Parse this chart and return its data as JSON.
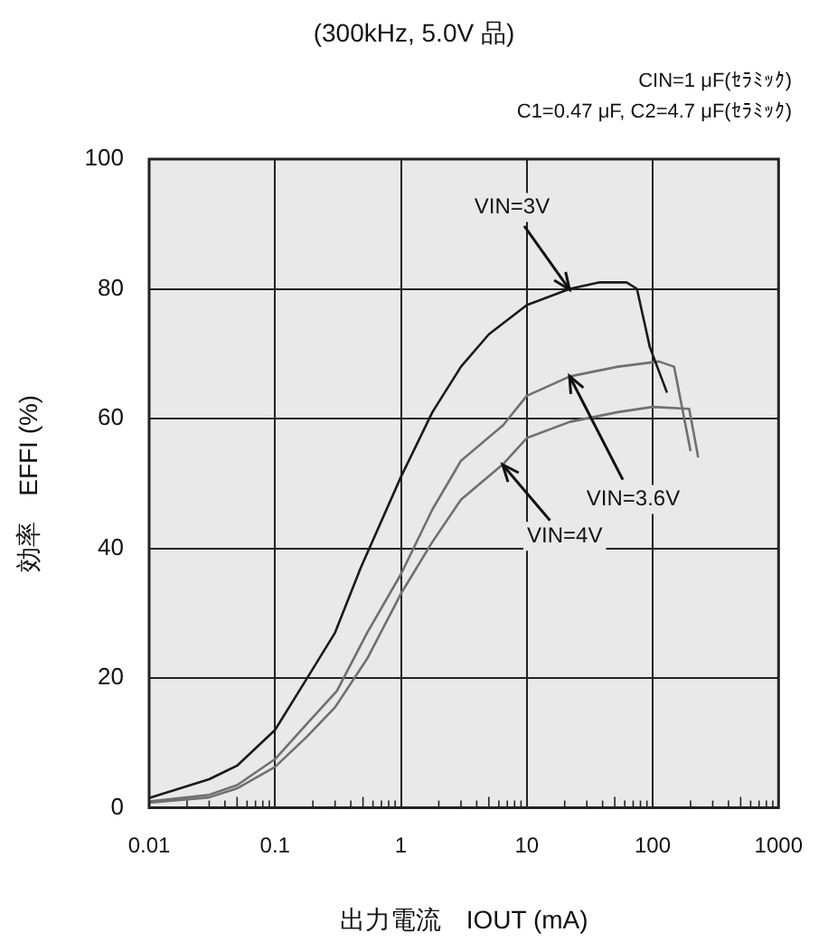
{
  "chart_data": {
    "type": "line",
    "title": "(300kHz, 5.0V 品)",
    "annotations": [
      "CIN=1 μF(ｾﾗﾐｯｸ)",
      "C1=0.47 μF, C2=4.7 μF(ｾﾗﾐｯｸ)"
    ],
    "xlabel": "出力電流　IOUT (mA)",
    "ylabel": "効率　EFFI (%)",
    "log": "x",
    "xlim": [
      0.01,
      1000
    ],
    "xticks": [
      0.01,
      0.1,
      1,
      10,
      100,
      1000
    ],
    "ylim": [
      0,
      100
    ],
    "yticks": [
      0,
      20,
      40,
      60,
      80,
      100
    ],
    "grid": true,
    "legend": false,
    "marker": "none",
    "line_style": "solid",
    "series": [
      {
        "name": "VIN=3V",
        "color": "#1a1a1a",
        "x": [
          0.01,
          0.03,
          0.05,
          0.1,
          0.18,
          0.3,
          0.48,
          1,
          1.78,
          3,
          5,
          10,
          22,
          38,
          62,
          75,
          95,
          130
        ],
        "values": [
          1.5,
          4.4,
          6.5,
          12,
          20,
          27,
          37,
          51,
          61,
          68,
          73,
          77.5,
          80,
          81,
          81,
          80,
          71,
          64
        ]
      },
      {
        "name": "VIN=3.6V",
        "color": "#707070",
        "x": [
          0.01,
          0.03,
          0.05,
          0.1,
          0.18,
          0.31,
          0.54,
          1,
          1.78,
          3,
          6.5,
          10,
          22,
          53,
          112,
          148,
          200
        ],
        "values": [
          1,
          2,
          3.5,
          7.5,
          13,
          18,
          27,
          36,
          46,
          53.5,
          59,
          63.5,
          66.5,
          68,
          68.8,
          68,
          55
        ]
      },
      {
        "name": "VIN=4V",
        "color": "#707070",
        "x": [
          0.01,
          0.03,
          0.05,
          0.1,
          0.18,
          0.3,
          0.54,
          1,
          1.78,
          3,
          6.5,
          10,
          22,
          53,
          100,
          195,
          230
        ],
        "values": [
          0.8,
          1.6,
          3,
          6.3,
          11,
          15.5,
          23,
          33,
          41,
          47.5,
          53,
          57,
          59.5,
          61,
          61.8,
          61.5,
          54
        ]
      }
    ]
  }
}
